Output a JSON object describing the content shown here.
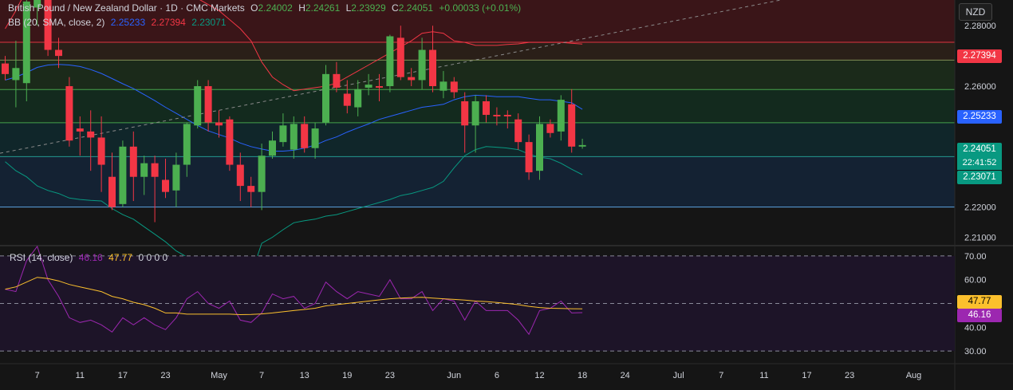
{
  "header": {
    "symbol": "British Pound / New Zealand Dollar · 1D · CMC Markets",
    "o_label": "O",
    "o": "2.24002",
    "h_label": "H",
    "h": "2.24261",
    "l_label": "L",
    "l": "2.23929",
    "c_label": "C",
    "c": "2.24051",
    "change": "+0.00033 (+0.01%)"
  },
  "bb_legend": {
    "name": "BB (20, SMA, close, 2)",
    "basis": "2.25233",
    "upper": "2.27394",
    "lower": "2.23071"
  },
  "rsi_legend": {
    "name": "RSI (14, close)",
    "rsi": "46.16",
    "ma": "47.77",
    "extra": "0 0 0 0"
  },
  "currency_button": "NZD",
  "price_tags": {
    "upper": "2.27394",
    "basis": "2.25233",
    "last": "2.24051",
    "countdown": "22:41:52",
    "lower": "2.23071"
  },
  "rsi_tags": {
    "ma": "47.77",
    "rsi": "46.16"
  },
  "colors": {
    "up": "#4caf50",
    "down": "#f23645",
    "bb_basis": "#2962ff",
    "bb_upper": "#f23645",
    "bb_lower": "#089981",
    "rsi": "#9c27b0",
    "rsi_ma": "#fbc02d"
  },
  "chart_data": {
    "type": "candlestick",
    "price_axis_ticks": [
      2.28,
      2.27,
      2.26,
      2.25,
      2.24,
      2.23,
      2.22,
      2.21
    ],
    "price_axis_labels": [
      "2.28000",
      "2.27000",
      "2.26000",
      "2.25000",
      "2.24000",
      "2.23000",
      "2.22000",
      "2.21000"
    ],
    "price_range": [
      2.2075,
      2.2885
    ],
    "horizontal_levels": [
      2.2745,
      2.2686,
      2.2589,
      2.2479,
      2.2367,
      2.22
    ],
    "rsi_axis_ticks": [
      70,
      60,
      50,
      40,
      30
    ],
    "rsi_axis_labels": [
      "70.00",
      "60.00",
      "50.00",
      "40.00",
      "30.00"
    ],
    "rsi_range": [
      25,
      74
    ],
    "x_axis_labels": [
      {
        "label": "7",
        "idx": 3
      },
      {
        "label": "11",
        "idx": 7
      },
      {
        "label": "17",
        "idx": 11
      },
      {
        "label": "23",
        "idx": 15
      },
      {
        "label": "May",
        "idx": 20
      },
      {
        "label": "7",
        "idx": 24
      },
      {
        "label": "13",
        "idx": 28
      },
      {
        "label": "19",
        "idx": 32
      },
      {
        "label": "23",
        "idx": 36
      },
      {
        "label": "Jun",
        "idx": 42
      },
      {
        "label": "6",
        "idx": 46
      },
      {
        "label": "12",
        "idx": 50
      },
      {
        "label": "18",
        "idx": 54
      },
      {
        "label": "24",
        "idx": 58
      },
      {
        "label": "Jul",
        "idx": 63
      },
      {
        "label": "7",
        "idx": 67
      },
      {
        "label": "11",
        "idx": 71
      },
      {
        "label": "17",
        "idx": 75
      },
      {
        "label": "23",
        "idx": 79
      },
      {
        "label": "Aug",
        "idx": 85
      }
    ],
    "candles": [
      {
        "o": 2.2675,
        "h": 2.27,
        "l": 2.262,
        "c": 2.264
      },
      {
        "o": 2.262,
        "h": 2.275,
        "l": 2.253,
        "c": 2.266
      },
      {
        "o": 2.261,
        "h": 2.29,
        "l": 2.255,
        "c": 2.288
      },
      {
        "o": 2.286,
        "h": 2.295,
        "l": 2.28,
        "c": 2.293
      },
      {
        "o": 2.293,
        "h": 2.296,
        "l": 2.27,
        "c": 2.272
      },
      {
        "o": 2.272,
        "h": 2.276,
        "l": 2.266,
        "c": 2.27
      },
      {
        "o": 2.26,
        "h": 2.263,
        "l": 2.24,
        "c": 2.242
      },
      {
        "o": 2.246,
        "h": 2.25,
        "l": 2.237,
        "c": 2.245
      },
      {
        "o": 2.245,
        "h": 2.252,
        "l": 2.232,
        "c": 2.243
      },
      {
        "o": 2.243,
        "h": 2.25,
        "l": 2.225,
        "c": 2.234
      },
      {
        "o": 2.23,
        "h": 2.238,
        "l": 2.219,
        "c": 2.22
      },
      {
        "o": 2.221,
        "h": 2.242,
        "l": 2.22,
        "c": 2.24
      },
      {
        "o": 2.24,
        "h": 2.245,
        "l": 2.222,
        "c": 2.23
      },
      {
        "o": 2.23,
        "h": 2.237,
        "l": 2.224,
        "c": 2.2345
      },
      {
        "o": 2.2345,
        "h": 2.237,
        "l": 2.215,
        "c": 2.23
      },
      {
        "o": 2.229,
        "h": 2.236,
        "l": 2.223,
        "c": 2.225
      },
      {
        "o": 2.2255,
        "h": 2.238,
        "l": 2.22,
        "c": 2.234
      },
      {
        "o": 2.234,
        "h": 2.248,
        "l": 2.23,
        "c": 2.2475
      },
      {
        "o": 2.247,
        "h": 2.262,
        "l": 2.246,
        "c": 2.26
      },
      {
        "o": 2.26,
        "h": 2.262,
        "l": 2.245,
        "c": 2.248
      },
      {
        "o": 2.248,
        "h": 2.252,
        "l": 2.243,
        "c": 2.247
      },
      {
        "o": 2.249,
        "h": 2.25,
        "l": 2.232,
        "c": 2.234
      },
      {
        "o": 2.234,
        "h": 2.238,
        "l": 2.222,
        "c": 2.227
      },
      {
        "o": 2.227,
        "h": 2.23,
        "l": 2.22,
        "c": 2.225
      },
      {
        "o": 2.225,
        "h": 2.241,
        "l": 2.219,
        "c": 2.237
      },
      {
        "o": 2.237,
        "h": 2.245,
        "l": 2.236,
        "c": 2.242
      },
      {
        "o": 2.2415,
        "h": 2.251,
        "l": 2.24,
        "c": 2.247
      },
      {
        "o": 2.239,
        "h": 2.25,
        "l": 2.236,
        "c": 2.2475
      },
      {
        "o": 2.2475,
        "h": 2.25,
        "l": 2.238,
        "c": 2.2395
      },
      {
        "o": 2.2395,
        "h": 2.248,
        "l": 2.236,
        "c": 2.246
      },
      {
        "o": 2.248,
        "h": 2.267,
        "l": 2.247,
        "c": 2.264
      },
      {
        "o": 2.264,
        "h": 2.268,
        "l": 2.258,
        "c": 2.2595
      },
      {
        "o": 2.2575,
        "h": 2.262,
        "l": 2.251,
        "c": 2.2535
      },
      {
        "o": 2.253,
        "h": 2.262,
        "l": 2.25,
        "c": 2.259
      },
      {
        "o": 2.2595,
        "h": 2.264,
        "l": 2.257,
        "c": 2.2605
      },
      {
        "o": 2.26,
        "h": 2.264,
        "l": 2.255,
        "c": 2.2595
      },
      {
        "o": 2.26,
        "h": 2.277,
        "l": 2.258,
        "c": 2.2765
      },
      {
        "o": 2.276,
        "h": 2.28,
        "l": 2.262,
        "c": 2.263
      },
      {
        "o": 2.263,
        "h": 2.266,
        "l": 2.26,
        "c": 2.262
      },
      {
        "o": 2.262,
        "h": 2.276,
        "l": 2.259,
        "c": 2.272
      },
      {
        "o": 2.272,
        "h": 2.28,
        "l": 2.258,
        "c": 2.26
      },
      {
        "o": 2.2585,
        "h": 2.265,
        "l": 2.256,
        "c": 2.2615
      },
      {
        "o": 2.2615,
        "h": 2.263,
        "l": 2.256,
        "c": 2.258
      },
      {
        "o": 2.255,
        "h": 2.258,
        "l": 2.238,
        "c": 2.247
      },
      {
        "o": 2.247,
        "h": 2.257,
        "l": 2.238,
        "c": 2.255
      },
      {
        "o": 2.255,
        "h": 2.257,
        "l": 2.248,
        "c": 2.2505
      },
      {
        "o": 2.2505,
        "h": 2.253,
        "l": 2.247,
        "c": 2.25
      },
      {
        "o": 2.2505,
        "h": 2.252,
        "l": 2.246,
        "c": 2.25
      },
      {
        "o": 2.249,
        "h": 2.251,
        "l": 2.239,
        "c": 2.2415
      },
      {
        "o": 2.2415,
        "h": 2.244,
        "l": 2.229,
        "c": 2.2315
      },
      {
        "o": 2.232,
        "h": 2.25,
        "l": 2.229,
        "c": 2.2475
      },
      {
        "o": 2.2475,
        "h": 2.249,
        "l": 2.243,
        "c": 2.2445
      },
      {
        "o": 2.245,
        "h": 2.257,
        "l": 2.242,
        "c": 2.2555
      },
      {
        "o": 2.254,
        "h": 2.259,
        "l": 2.238,
        "c": 2.24
      },
      {
        "o": 2.24,
        "h": 2.2426,
        "l": 2.2393,
        "c": 2.24051
      }
    ],
    "bb_upper": [
      2.279,
      2.285,
      2.292,
      2.298,
      2.302,
      2.304,
      2.304,
      2.302,
      2.3,
      2.298,
      2.297,
      2.296,
      2.295,
      2.294,
      2.293,
      2.292,
      2.291,
      2.29,
      2.289,
      2.287,
      2.285,
      2.282,
      2.279,
      2.275,
      2.268,
      2.263,
      2.2605,
      2.2585,
      2.259,
      2.2595,
      2.26,
      2.261,
      2.263,
      2.265,
      2.267,
      2.269,
      2.271,
      2.273,
      2.275,
      2.2775,
      2.278,
      2.2775,
      2.275,
      2.2745,
      2.2735,
      2.2735,
      2.2735,
      2.2738,
      2.274,
      2.2745,
      2.2745,
      2.2745,
      2.2745,
      2.2742,
      2.2739
    ],
    "bb_basis": [
      2.262,
      2.263,
      2.2645,
      2.2662,
      2.267,
      2.2672,
      2.267,
      2.2665,
      2.2655,
      2.2642,
      2.2625,
      2.2608,
      2.2592,
      2.2572,
      2.2552,
      2.253,
      2.251,
      2.249,
      2.247,
      2.2452,
      2.244,
      2.2428,
      2.2412,
      2.24,
      2.2392,
      2.2385,
      2.2385,
      2.2388,
      2.2395,
      2.2405,
      2.242,
      2.2432,
      2.2448,
      2.2462,
      2.2475,
      2.249,
      2.25,
      2.251,
      2.252,
      2.253,
      2.2535,
      2.254,
      2.2555,
      2.2565,
      2.257,
      2.2568,
      2.2565,
      2.2565,
      2.2565,
      2.256,
      2.2555,
      2.2555,
      2.255,
      2.2545,
      2.25233
    ],
    "bb_lower": [
      2.235,
      2.232,
      2.23,
      2.227,
      2.2255,
      2.2245,
      2.223,
      2.2225,
      2.2222,
      2.222,
      2.2195,
      2.2175,
      2.216,
      2.2135,
      2.211,
      2.2085,
      2.2055,
      2.2035,
      2.201,
      2.199,
      2.1975,
      2.1965,
      2.196,
      2.1975,
      2.208,
      2.21,
      2.2125,
      2.2148,
      2.2155,
      2.216,
      2.217,
      2.2175,
      2.2185,
      2.2195,
      2.2205,
      2.2215,
      2.2225,
      2.2238,
      2.2245,
      2.2255,
      2.2265,
      2.2285,
      2.233,
      2.237,
      2.239,
      2.24,
      2.2398,
      2.2395,
      2.239,
      2.2375,
      2.2365,
      2.236,
      2.2345,
      2.2325,
      2.23071
    ],
    "rsi": [
      56,
      55,
      68,
      74,
      60,
      53,
      44,
      42,
      43,
      41,
      38,
      44,
      41,
      44,
      41,
      39,
      44,
      52,
      55,
      50,
      48,
      51,
      43,
      42,
      46,
      54,
      52,
      53,
      48,
      50,
      59,
      55,
      52,
      55,
      54,
      53,
      60,
      52,
      52,
      55,
      47,
      52,
      51,
      43,
      51,
      47,
      47,
      47,
      43,
      37,
      47,
      48,
      51,
      46,
      46.16
    ],
    "rsi_ma": [
      56,
      57,
      59,
      61,
      60.5,
      59.5,
      58,
      57,
      56,
      55,
      53,
      52,
      50.5,
      49.5,
      48,
      46,
      46,
      45.5,
      45.5,
      45.5,
      45.5,
      45.5,
      45.3,
      45.4,
      45.6,
      46,
      46.5,
      47,
      47.5,
      48,
      49,
      49.5,
      50,
      50.5,
      51,
      51.5,
      52,
      52.3,
      52.5,
      52.6,
      52.3,
      52,
      51.7,
      51.4,
      51,
      50.8,
      50.4,
      50,
      49.5,
      48.8,
      48.3,
      48,
      47.9,
      47.8,
      47.77
    ]
  }
}
